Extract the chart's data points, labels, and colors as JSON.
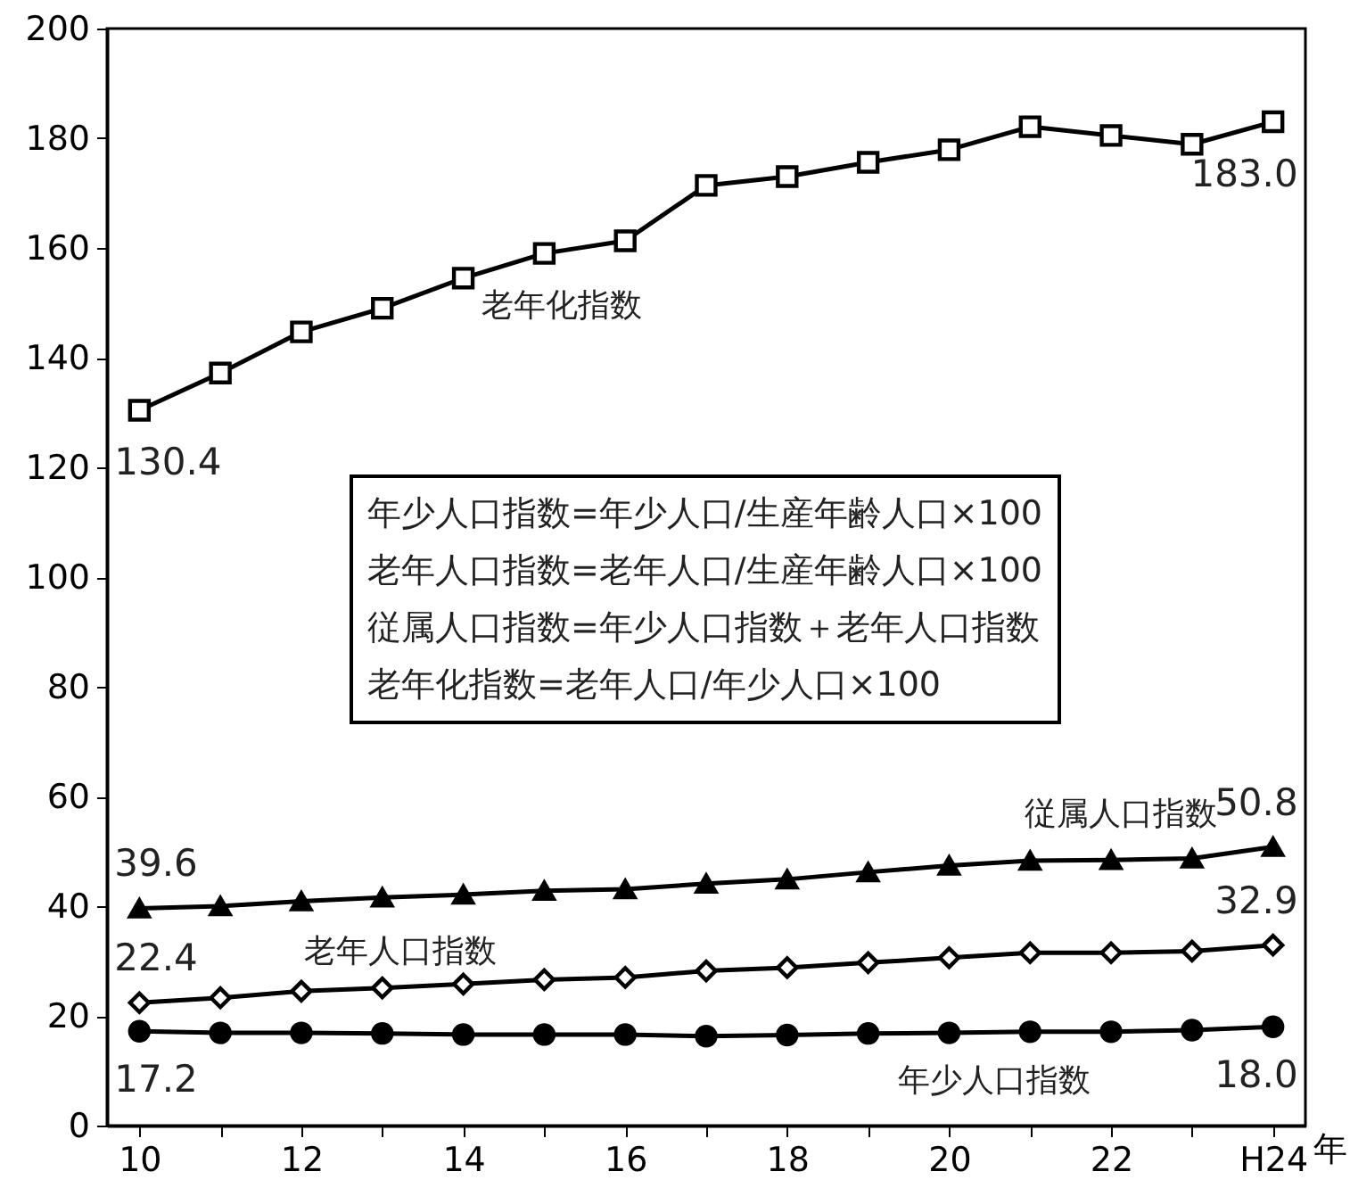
{
  "chart_data": {
    "type": "line",
    "categories": [
      "10",
      null,
      "12",
      null,
      "14",
      null,
      "16",
      null,
      "18",
      null,
      "20",
      null,
      "22",
      null,
      "H24"
    ],
    "xlabel": "年",
    "ylim": [
      0,
      200
    ],
    "yticks": [
      0,
      20,
      40,
      60,
      80,
      100,
      120,
      140,
      160,
      180,
      200
    ],
    "line_style": "solid",
    "series": [
      {
        "name": "老年化指数",
        "color": "#000000",
        "marker": "square",
        "values": [
          130.4,
          137.2,
          144.7,
          149.0,
          154.5,
          159.0,
          161.3,
          171.4,
          173.0,
          175.6,
          177.9,
          182.1,
          180.5,
          178.9,
          183.0
        ],
        "value_labels": [
          "130.4",
          null,
          null,
          null,
          null,
          null,
          null,
          null,
          null,
          null,
          null,
          null,
          null,
          null,
          "183.0"
        ]
      },
      {
        "name": "従属人口指数",
        "color": "#000000",
        "marker": "triangle",
        "values": [
          39.6,
          40.0,
          40.9,
          41.6,
          42.1,
          42.8,
          43.1,
          44.1,
          44.9,
          46.2,
          47.4,
          48.3,
          48.4,
          48.7,
          50.8
        ],
        "value_labels": [
          "39.6",
          null,
          null,
          null,
          null,
          null,
          null,
          null,
          null,
          null,
          null,
          null,
          null,
          null,
          "50.8"
        ]
      },
      {
        "name": "老年人口指数",
        "color": "#000000",
        "marker": "diamond",
        "values": [
          22.4,
          23.3,
          24.5,
          25.1,
          25.8,
          26.6,
          27.0,
          28.2,
          28.8,
          29.7,
          30.6,
          31.5,
          31.5,
          31.8,
          32.9
        ],
        "value_labels": [
          "22.4",
          null,
          null,
          null,
          null,
          null,
          null,
          null,
          null,
          null,
          null,
          null,
          null,
          null,
          "32.9"
        ]
      },
      {
        "name": "年少人口指数",
        "color": "#000000",
        "marker": "circle",
        "values": [
          17.2,
          16.9,
          16.9,
          16.8,
          16.6,
          16.6,
          16.6,
          16.3,
          16.5,
          16.8,
          16.9,
          17.1,
          17.1,
          17.4,
          18.0
        ],
        "value_labels": [
          "17.2",
          null,
          null,
          null,
          null,
          null,
          null,
          null,
          null,
          null,
          null,
          null,
          null,
          null,
          "18.0"
        ]
      }
    ],
    "annotations": [
      "年少人口指数=年少人口/生産年齢人口×100",
      "老年人口指数=老年人口/生産年齢人口×100",
      "従属人口指数=年少人口指数＋老年人口指数",
      "老年化指数=老年人口/年少人口×100"
    ]
  }
}
